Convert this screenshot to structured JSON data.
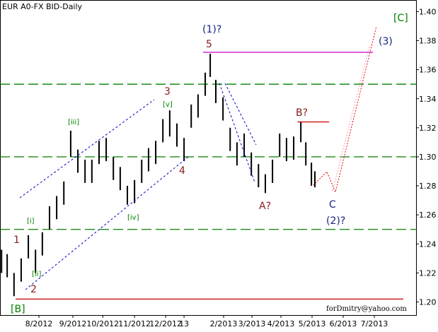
{
  "chart_data": {
    "type": "ohlc",
    "title": "EUR A0-FX BID-Daily",
    "xlim": [
      0,
      13.36
    ],
    "ylim": [
      1.191,
      1.408
    ],
    "yticks": [
      {
        "value": 1.2,
        "label": "1.20"
      },
      1.22,
      1.24,
      1.26,
      1.28,
      {
        "value": 1.3,
        "label": "1.30"
      },
      1.32,
      1.34,
      1.36,
      1.38,
      {
        "value": 1.4,
        "label": "1.40"
      }
    ],
    "xticks": [
      {
        "value": 1.25,
        "label": "8/2012"
      },
      {
        "value": 2.34,
        "label": "9/2012"
      },
      {
        "value": 3.3,
        "label": "10/2012"
      },
      {
        "value": 4.32,
        "label": "11/2012"
      },
      {
        "value": 5.32,
        "label": "12/2012"
      },
      {
        "value": 5.91,
        "label": "13"
      },
      {
        "value": 7.18,
        "label": "2/2013"
      },
      {
        "value": 8.09,
        "label": "3/2013"
      },
      {
        "value": 9.02,
        "label": "4/2013"
      },
      {
        "value": 10.02,
        "label": "5/2013"
      },
      {
        "value": 11.02,
        "label": "6/2013"
      },
      {
        "value": 12.02,
        "label": "7/2013"
      }
    ],
    "bars": {
      "color": "#000000",
      "x": [
        0.05,
        0.23,
        0.45,
        0.68,
        0.91,
        1.14,
        1.36,
        1.59,
        1.82,
        2.05,
        2.27,
        2.5,
        2.73,
        2.95,
        3.18,
        3.41,
        3.64,
        3.86,
        4.09,
        4.32,
        4.55,
        4.77,
        5.0,
        5.23,
        5.45,
        5.68,
        5.91,
        6.14,
        6.36,
        6.59,
        6.75,
        6.93,
        7.16,
        7.39,
        7.61,
        7.84,
        8.07,
        8.3,
        8.52,
        8.75,
        8.98,
        9.2,
        9.43,
        9.66,
        9.82,
        10.0,
        10.11
      ],
      "high": [
        1.236,
        1.233,
        1.22,
        1.23,
        1.246,
        1.236,
        1.248,
        1.266,
        1.273,
        1.283,
        1.318,
        1.305,
        1.298,
        1.298,
        1.311,
        1.313,
        1.3,
        1.293,
        1.28,
        1.284,
        1.298,
        1.306,
        1.311,
        1.326,
        1.332,
        1.323,
        1.313,
        1.336,
        1.343,
        1.358,
        1.371,
        1.353,
        1.341,
        1.32,
        1.31,
        1.316,
        1.303,
        1.295,
        1.288,
        1.298,
        1.316,
        1.313,
        1.314,
        1.324,
        1.31,
        1.296,
        1.29
      ],
      "low": [
        1.22,
        1.217,
        1.204,
        1.214,
        1.23,
        1.22,
        1.232,
        1.25,
        1.257,
        1.267,
        1.3,
        1.289,
        1.282,
        1.282,
        1.295,
        1.297,
        1.284,
        1.277,
        1.267,
        1.268,
        1.282,
        1.29,
        1.295,
        1.31,
        1.314,
        1.307,
        1.297,
        1.32,
        1.327,
        1.342,
        1.355,
        1.337,
        1.325,
        1.304,
        1.294,
        1.3,
        1.287,
        1.279,
        1.275,
        1.282,
        1.3,
        1.297,
        1.298,
        1.31,
        1.294,
        1.28,
        1.279
      ]
    },
    "hlines": [
      {
        "value": 1.35,
        "color": "#008000"
      },
      {
        "value": 1.3,
        "color": "#008000"
      },
      {
        "value": 1.25,
        "color": "#008000"
      }
    ],
    "segments": [
      {
        "y": 1.372,
        "x": [
          6.52,
          11.98
        ],
        "color": "#cc00cc"
      },
      {
        "y": 1.324,
        "x": [
          9.55,
          10.57
        ],
        "color": "#cc0000"
      },
      {
        "y": 1.202,
        "x": [
          0.5,
          12.95
        ],
        "color": "#cc0000"
      }
    ],
    "annotations": [
      "[C]",
      "(1)?",
      "5",
      "(3)",
      "3",
      "[v]",
      "[iii]",
      "B?",
      "4",
      "[i]",
      "1",
      "[ii]",
      "2",
      "[iv]",
      "A?",
      "C",
      "(2)?",
      "[B]",
      "forDmitry@yahoo.com"
    ]
  }
}
